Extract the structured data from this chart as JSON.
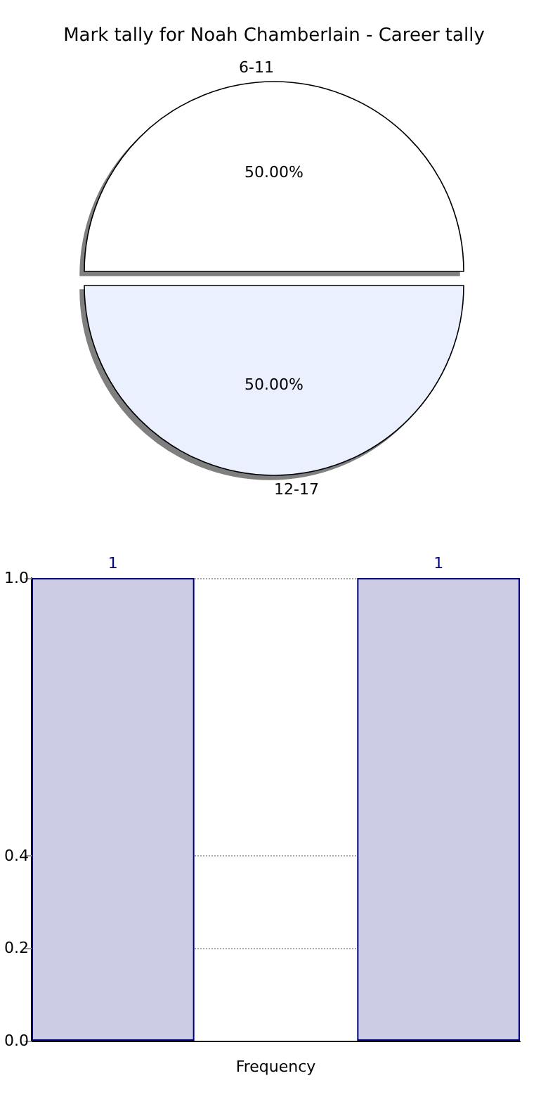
{
  "chart_data": [
    {
      "type": "pie",
      "title": "Mark tally for Noah Chamberlain - Career tally",
      "categories": [
        "6-11",
        "12-17"
      ],
      "values": [
        50,
        50
      ],
      "colors": [
        "#ffffff",
        "#eaf0fe"
      ],
      "value_labels": [
        "50.00%",
        "50.00%"
      ],
      "legend": false
    },
    {
      "type": "bar",
      "xlabel": "Frequency",
      "categories": [
        null,
        null,
        null
      ],
      "values": [
        1,
        null,
        1
      ],
      "color": "#cccce4",
      "ylim": [
        0,
        1
      ],
      "yticks": [
        {
          "value": 0,
          "label": "0.0"
        },
        0.2,
        0.4,
        {
          "value": 1,
          "label": "1.0"
        }
      ],
      "grid": "y",
      "data_labels": true
    }
  ]
}
